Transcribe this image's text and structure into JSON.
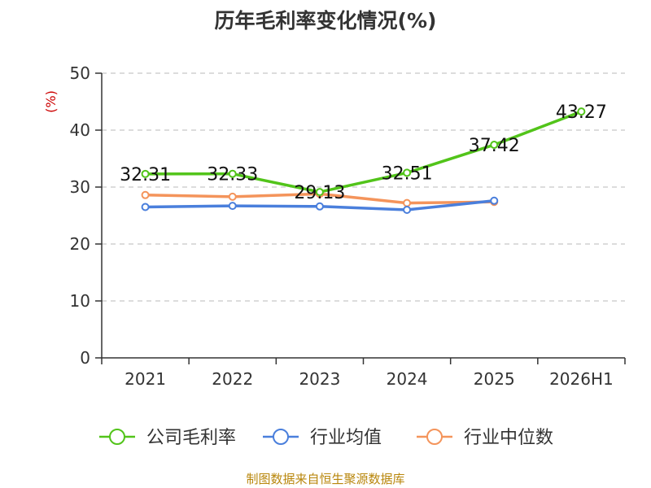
{
  "title": "历年毛利率变化情况(%)",
  "y_unit": "(%)",
  "source": "制图数据来自恒生聚源数据库",
  "chart_data": {
    "type": "line",
    "title": "历年毛利率变化情况(%)",
    "ylabel": "(%)",
    "ylim": [
      0,
      50
    ],
    "yticks": [
      0,
      10,
      20,
      30,
      40,
      50
    ],
    "grid": true,
    "legend_position": "bottom",
    "categories": [
      "2021",
      "2022",
      "2023",
      "2024",
      "2025",
      "2026H1"
    ],
    "series": [
      {
        "name": "公司毛利率",
        "color": "#52c41a",
        "values": [
          32.31,
          32.33,
          29.13,
          32.51,
          37.42,
          43.27
        ],
        "labels": [
          "32.31",
          "32.33",
          "29.13",
          "32.51",
          "37.42",
          "43.27"
        ]
      },
      {
        "name": "行业均值",
        "color": "#4a7fdc",
        "values": [
          26.5,
          26.7,
          26.6,
          26.0,
          27.6,
          null
        ]
      },
      {
        "name": "行业中位数",
        "color": "#f4945b",
        "values": [
          28.6,
          28.3,
          28.8,
          27.2,
          27.4,
          null
        ]
      }
    ]
  }
}
